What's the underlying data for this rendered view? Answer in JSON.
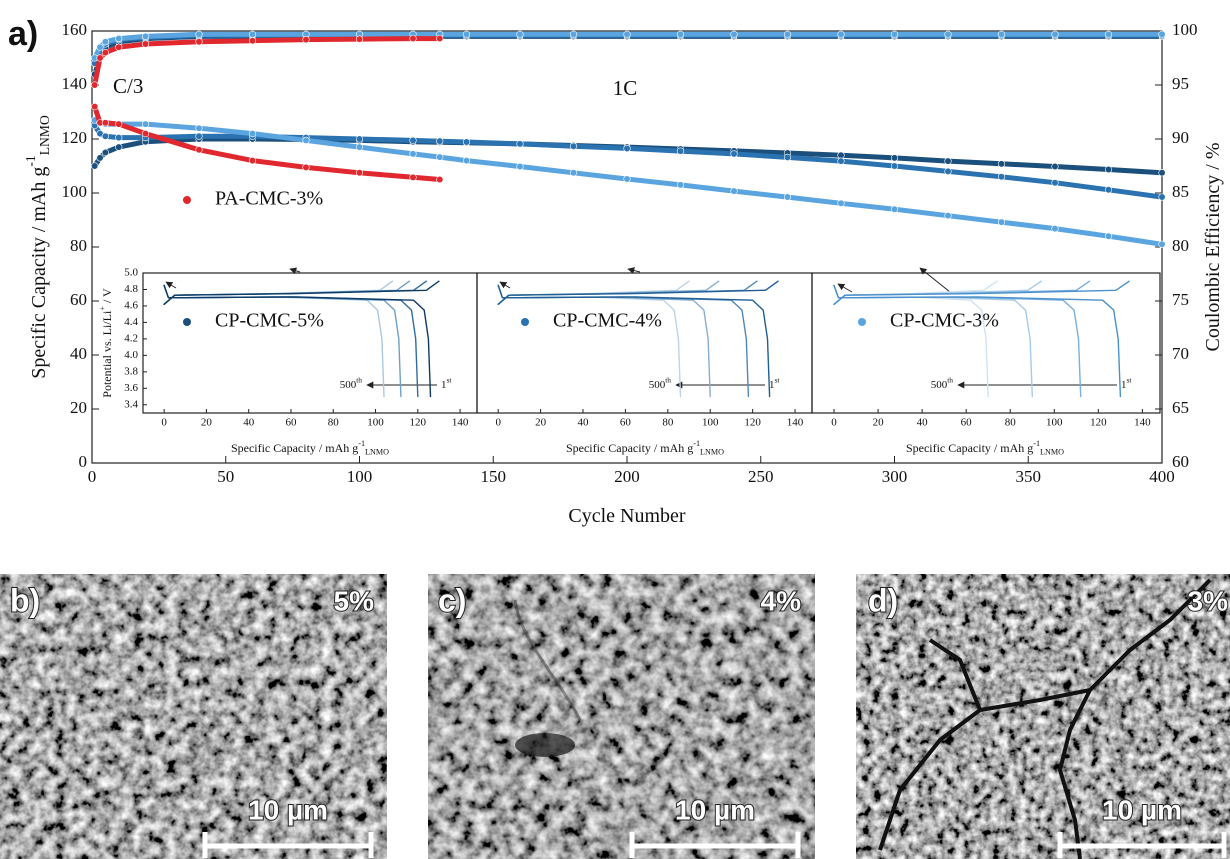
{
  "chart_data": [
    {
      "type": "line",
      "panel_label": "a)",
      "markers": true,
      "xlabel": [
        "Cycle Number"
      ],
      "ylabel": [
        "Specific Capacity / mAh g",
        {
          "sup": "-1"
        },
        {
          "sub": "LNMO"
        }
      ],
      "y2label": [
        "Coulombic Efficiency / %"
      ],
      "annotations": [
        [
          "C/3"
        ],
        [
          "1C"
        ]
      ],
      "xlim": [
        0,
        400
      ],
      "xticks": [
        0,
        50,
        100,
        150,
        200,
        250,
        300,
        350,
        400
      ],
      "ylim": [
        0,
        160
      ],
      "yticks": [
        0,
        20,
        40,
        60,
        80,
        100,
        120,
        140,
        160
      ],
      "y2lim": [
        60,
        100
      ],
      "y2ticks": [
        60,
        65,
        70,
        75,
        80,
        85,
        90,
        95,
        100
      ],
      "x": [
        1,
        3,
        5,
        10,
        20,
        40,
        60,
        80,
        100,
        120,
        130,
        140,
        160,
        180,
        200,
        220,
        240,
        260,
        280,
        300,
        320,
        340,
        360,
        380,
        400
      ],
      "series": [
        {
          "name": "CP-CMC-5%",
          "color": "#1b4f7c",
          "values": [
            110,
            113,
            115,
            117,
            119,
            120,
            120,
            119.8,
            119.5,
            119,
            118.8,
            118.6,
            118.2,
            117.6,
            117,
            116.3,
            115.6,
            114.8,
            114,
            113,
            111.8,
            110.8,
            109.8,
            108.7,
            107.5
          ]
        },
        {
          "name": "CP-CMC-4%",
          "color": "#2a72b0",
          "values": [
            125,
            122,
            121,
            120.5,
            120.5,
            121,
            121,
            120.5,
            120,
            119.5,
            119.2,
            118.9,
            118.2,
            117.3,
            116.5,
            115.5,
            114.5,
            113.2,
            111.8,
            110,
            108,
            106,
            103.8,
            101.2,
            98.5
          ]
        },
        {
          "name": "CP-CMC-3%",
          "color": "#5aa5e0",
          "values": [
            127,
            126,
            125.5,
            125.5,
            125.5,
            124,
            122,
            119.5,
            117,
            114.5,
            113.3,
            112,
            109.8,
            107.5,
            105.2,
            103,
            100.7,
            98.5,
            96.2,
            94,
            91.6,
            89.2,
            86.8,
            84,
            81
          ]
        },
        {
          "name": "PA-CMC-3%",
          "color": "#e0282e",
          "values": [
            132,
            126,
            126,
            125.5,
            122,
            116,
            112,
            109.5,
            107.5,
            105.8,
            105,
            null,
            null,
            null,
            null,
            null,
            null,
            null,
            null,
            null,
            null,
            null,
            null,
            null,
            null
          ]
        },
        {
          "axis": "y2",
          "color": "#1b4f7c",
          "values": [
            96,
            97.5,
            98.5,
            99,
            99.3,
            99.5,
            99.5,
            99.5,
            99.5,
            99.5,
            99.5,
            99.5,
            99.5,
            99.5,
            99.5,
            99.5,
            99.5,
            99.5,
            99.5,
            99.5,
            99.5,
            99.5,
            99.5,
            99.5,
            99.5
          ]
        },
        {
          "axis": "y2",
          "color": "#2a72b0",
          "values": [
            97,
            98,
            98.8,
            99.2,
            99.4,
            99.6,
            99.6,
            99.6,
            99.6,
            99.6,
            99.6,
            99.6,
            99.6,
            99.6,
            99.6,
            99.6,
            99.6,
            99.6,
            99.6,
            99.6,
            99.6,
            99.6,
            99.6,
            99.6,
            99.6
          ]
        },
        {
          "axis": "y2",
          "color": "#5aa5e0",
          "values": [
            97.5,
            98.5,
            99,
            99.3,
            99.5,
            99.7,
            99.7,
            99.7,
            99.7,
            99.7,
            99.7,
            99.7,
            99.7,
            99.7,
            99.7,
            99.7,
            99.7,
            99.7,
            99.7,
            99.7,
            99.7,
            99.7,
            99.7,
            99.7,
            99.7
          ]
        },
        {
          "axis": "y2",
          "color": "#e0282e",
          "values": [
            95,
            97.5,
            98,
            98.5,
            98.8,
            99,
            99.1,
            99.2,
            99.25,
            99.3,
            99.3,
            null,
            null,
            null,
            null,
            null,
            null,
            null,
            null,
            null,
            null,
            null,
            null,
            null,
            null
          ]
        }
      ]
    },
    {
      "type": "line",
      "xlabel": [
        "Specific Capacity / mAh g",
        {
          "sup": "-1"
        },
        {
          "sub": "LNMO"
        }
      ],
      "ylabel": [
        "Potential vs. Li/Li",
        {
          "sup": "+"
        },
        " / V"
      ],
      "annotations": [
        [
          "500",
          {
            "sup": "th"
          }
        ],
        [
          "1",
          {
            "sup": "st"
          }
        ]
      ],
      "xlim": [
        -10,
        148
      ],
      "xticks": [
        0,
        20,
        40,
        60,
        80,
        100,
        120,
        140
      ],
      "ylim": [
        3.3,
        5
      ],
      "yticks": [
        3.4,
        3.6,
        3.8,
        {
          "value": 4,
          "label": "4.0"
        },
        4.2,
        4.4,
        4.6,
        4.8,
        {
          "value": 5,
          "label": "5.0"
        }
      ],
      "series": [
        {
          "color": "#a9c8e2",
          "x": [
            0,
            5,
            52,
            102,
            108,
            null,
            0,
            2,
            10,
            52,
            96,
            101,
            103,
            104
          ],
          "values": [
            4.62,
            4.73,
            4.75,
            4.79,
            4.9,
            null,
            4.85,
            4.7,
            4.7,
            4.71,
            4.67,
            4.55,
            4.2,
            3.5
          ]
        },
        {
          "color": "#6fa0c8",
          "x": [
            0,
            5,
            56,
            110,
            116,
            null,
            0,
            2,
            10,
            56,
            104,
            109,
            111,
            112
          ],
          "values": [
            4.62,
            4.73,
            4.75,
            4.79,
            4.9,
            null,
            4.85,
            4.7,
            4.7,
            4.71,
            4.67,
            4.55,
            4.2,
            3.5
          ]
        },
        {
          "color": "#2f6d9e",
          "x": [
            0,
            5,
            60,
            118,
            124,
            null,
            0,
            2,
            10,
            60,
            112,
            117,
            119,
            120
          ],
          "values": [
            4.62,
            4.73,
            4.75,
            4.79,
            4.9,
            null,
            4.85,
            4.7,
            4.7,
            4.71,
            4.67,
            4.55,
            4.2,
            3.5
          ]
        },
        {
          "color": "#0d3b66",
          "x": [
            0,
            5,
            63,
            124,
            130,
            null,
            0,
            2,
            10,
            63,
            118,
            123,
            125,
            126
          ],
          "values": [
            4.62,
            4.73,
            4.75,
            4.79,
            4.9,
            null,
            4.85,
            4.7,
            4.7,
            4.71,
            4.67,
            4.55,
            4.2,
            3.5
          ]
        }
      ]
    },
    {
      "type": "line",
      "xlabel": [
        "Specific Capacity / mAh g",
        {
          "sup": "-1"
        },
        {
          "sub": "LNMO"
        }
      ],
      "annotations": [
        [
          "500",
          {
            "sup": "th"
          }
        ],
        [
          "1",
          {
            "sup": "st"
          }
        ]
      ],
      "xlim": [
        -10,
        148
      ],
      "xticks": [
        0,
        20,
        40,
        60,
        80,
        100,
        120,
        140
      ],
      "ylim": [
        3.3,
        5
      ],
      "series": [
        {
          "color": "#bcd3e8",
          "x": [
            0,
            5,
            43,
            84,
            90,
            null,
            0,
            2,
            10,
            43,
            78,
            83,
            85,
            86
          ],
          "values": [
            4.62,
            4.73,
            4.75,
            4.79,
            4.9,
            null,
            4.85,
            4.7,
            4.7,
            4.71,
            4.67,
            4.55,
            4.2,
            3.5
          ]
        },
        {
          "color": "#86aed0",
          "x": [
            0,
            5,
            50,
            98,
            104,
            null,
            0,
            2,
            10,
            50,
            92,
            97,
            99,
            100
          ],
          "values": [
            4.62,
            4.73,
            4.75,
            4.79,
            4.9,
            null,
            4.85,
            4.7,
            4.7,
            4.71,
            4.67,
            4.55,
            4.2,
            3.5
          ]
        },
        {
          "color": "#4f88b8",
          "x": [
            0,
            5,
            59,
            116,
            122,
            null,
            0,
            2,
            10,
            59,
            110,
            115,
            117,
            118
          ],
          "values": [
            4.62,
            4.73,
            4.75,
            4.79,
            4.9,
            null,
            4.85,
            4.7,
            4.7,
            4.71,
            4.67,
            4.55,
            4.2,
            3.5
          ]
        },
        {
          "color": "#1f5f96",
          "x": [
            0,
            5,
            64,
            126,
            132,
            null,
            0,
            2,
            10,
            64,
            120,
            125,
            127,
            128
          ],
          "values": [
            4.62,
            4.73,
            4.75,
            4.79,
            4.9,
            null,
            4.85,
            4.7,
            4.7,
            4.71,
            4.67,
            4.55,
            4.2,
            3.5
          ]
        }
      ]
    },
    {
      "type": "line",
      "xlabel": [
        "Specific Capacity / mAh g",
        {
          "sup": "-1"
        },
        {
          "sub": "LNMO"
        }
      ],
      "annotations": [
        [
          "500",
          {
            "sup": "th"
          }
        ],
        [
          "1",
          {
            "sup": "st"
          }
        ]
      ],
      "xlim": [
        -10,
        148
      ],
      "xticks": [
        0,
        20,
        40,
        60,
        80,
        100,
        120,
        140
      ],
      "ylim": [
        3.3,
        5
      ],
      "series": [
        {
          "color": "#cfe2f3",
          "x": [
            0,
            5,
            35,
            68,
            74,
            null,
            0,
            2,
            10,
            35,
            62,
            67,
            69,
            70
          ],
          "values": [
            4.62,
            4.73,
            4.75,
            4.79,
            4.9,
            null,
            4.85,
            4.7,
            4.7,
            4.71,
            4.67,
            4.55,
            4.2,
            3.5
          ]
        },
        {
          "color": "#a6cbe9",
          "x": [
            0,
            5,
            45,
            88,
            94,
            null,
            0,
            2,
            10,
            45,
            82,
            87,
            89,
            90
          ],
          "values": [
            4.62,
            4.73,
            4.75,
            4.79,
            4.9,
            null,
            4.85,
            4.7,
            4.7,
            4.71,
            4.67,
            4.55,
            4.2,
            3.5
          ]
        },
        {
          "color": "#79afdc",
          "x": [
            0,
            5,
            56,
            110,
            116,
            null,
            0,
            2,
            10,
            56,
            104,
            109,
            111,
            112
          ],
          "values": [
            4.62,
            4.73,
            4.75,
            4.79,
            4.9,
            null,
            4.85,
            4.7,
            4.7,
            4.71,
            4.67,
            4.55,
            4.2,
            3.5
          ]
        },
        {
          "color": "#4a90cc",
          "x": [
            0,
            5,
            65,
            128,
            134,
            null,
            0,
            2,
            10,
            65,
            122,
            127,
            129,
            130
          ],
          "values": [
            4.62,
            4.73,
            4.75,
            4.79,
            4.9,
            null,
            4.85,
            4.7,
            4.7,
            4.71,
            4.67,
            4.55,
            4.2,
            3.5
          ]
        }
      ]
    }
  ],
  "panels": [
    {
      "label": "b)",
      "percent": "5%",
      "scale": "10 µm"
    },
    {
      "label": "c)",
      "percent": "4%",
      "scale": "10 µm"
    },
    {
      "label": "d)",
      "percent": "3%",
      "scale": "10 µm"
    }
  ]
}
